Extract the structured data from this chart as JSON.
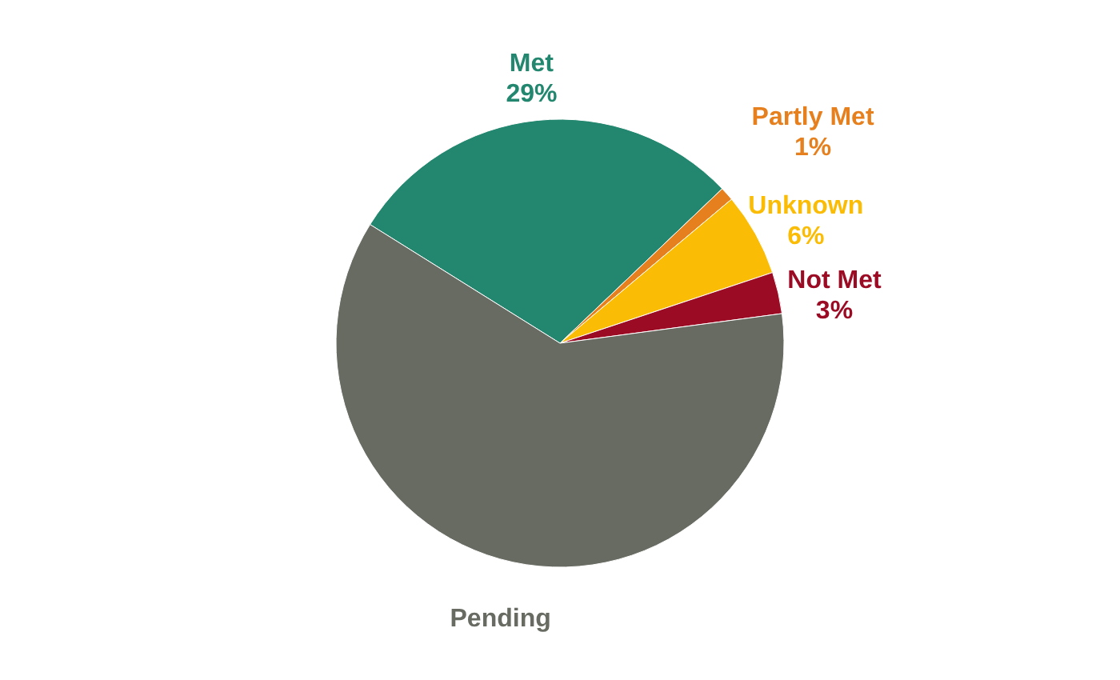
{
  "chart_data": {
    "type": "pie",
    "categories": [
      "Met",
      "Partly Met",
      "Unknown",
      "Not Met",
      "Pending"
    ],
    "values": [
      29,
      1,
      6,
      3,
      61
    ],
    "value_labels": [
      "29%",
      "1%",
      "6%",
      "3%",
      null
    ],
    "colors": [
      "#23876f",
      "#e6801e",
      "#fbbc05",
      "#9b0b24",
      "#676b62"
    ]
  }
}
